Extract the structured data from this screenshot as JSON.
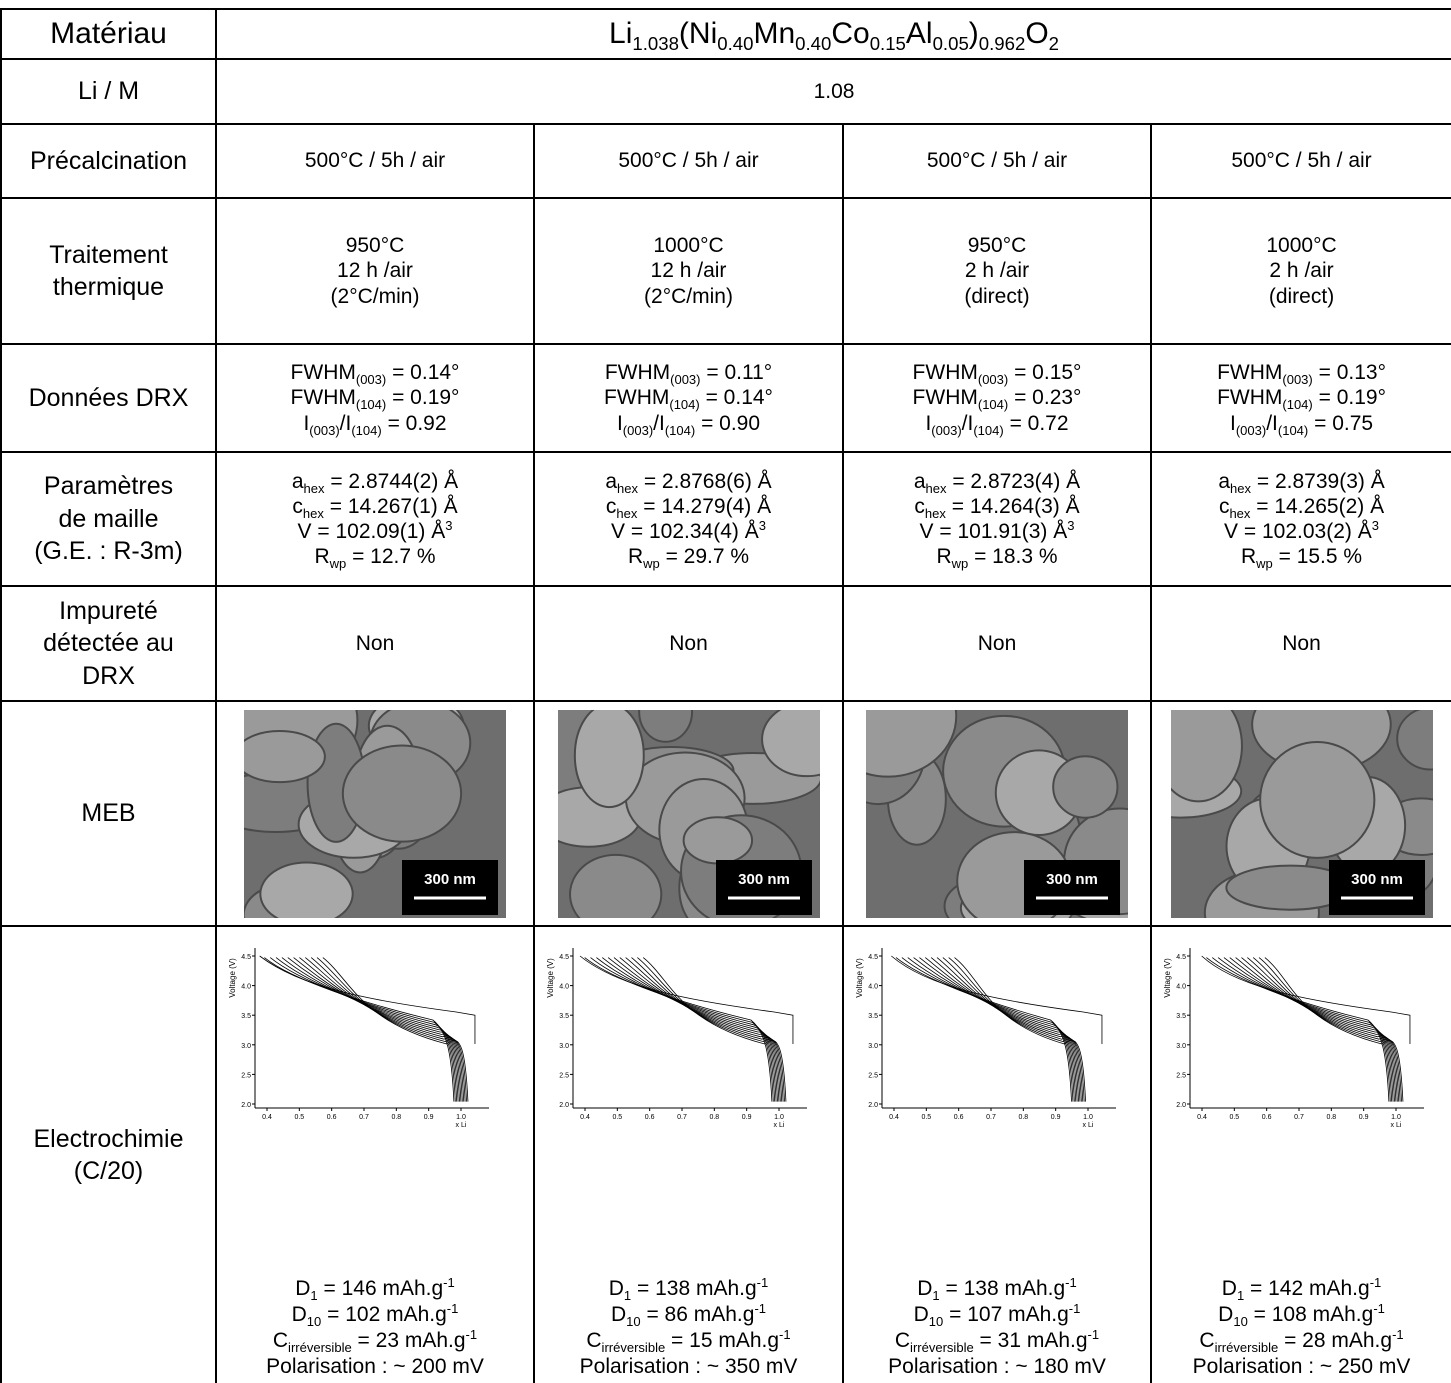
{
  "table": {
    "header": {
      "label": [
        "Matériau"
      ],
      "formula": [
        [
          {
            "t": "Li"
          },
          {
            "sub": "1.038"
          },
          {
            "t": "(Ni"
          },
          {
            "sub": "0.40"
          },
          {
            "t": "Mn"
          },
          {
            "sub": "0.40"
          },
          {
            "t": "Co"
          },
          {
            "sub": "0.15"
          },
          {
            "t": "Al"
          },
          {
            "sub": "0.05"
          },
          {
            "t": ")"
          },
          {
            "sub": "0.962"
          },
          {
            "t": "O"
          },
          {
            "sub": "2"
          }
        ]
      ]
    },
    "rows": [
      {
        "label": [
          "Li / M"
        ],
        "cells": [
          [
            "1.08"
          ]
        ]
      },
      {
        "label": [
          "Précalcination"
        ],
        "cells": [
          [
            "500°C / 5h / air"
          ],
          [
            "500°C / 5h / air"
          ],
          [
            "500°C / 5h / air"
          ],
          [
            "500°C / 5h / air"
          ]
        ]
      },
      {
        "label": [
          "Traitement",
          "thermique"
        ],
        "cells": [
          [
            "950°C",
            "12 h /air",
            "(2°C/min)"
          ],
          [
            "1000°C",
            "12 h /air",
            "(2°C/min)"
          ],
          [
            "950°C",
            "2 h /air",
            "(direct)"
          ],
          [
            "1000°C",
            "2 h /air",
            "(direct)"
          ]
        ]
      },
      {
        "label": [
          "Données DRX"
        ],
        "cells": [
          [
            [
              {
                "t": "FWHM"
              },
              {
                "sub": "(003)"
              },
              {
                "t": " = 0.14°"
              }
            ],
            [
              {
                "t": "FWHM"
              },
              {
                "sub": "(104)"
              },
              {
                "t": " = 0.19°"
              }
            ],
            [
              {
                "t": "I"
              },
              {
                "sub": "(003)"
              },
              {
                "t": "/I"
              },
              {
                "sub": "(104)"
              },
              {
                "t": " = 0.92"
              }
            ]
          ],
          [
            [
              {
                "t": "FWHM"
              },
              {
                "sub": "(003)"
              },
              {
                "t": " = 0.11°"
              }
            ],
            [
              {
                "t": "FWHM"
              },
              {
                "sub": "(104)"
              },
              {
                "t": " = 0.14°"
              }
            ],
            [
              {
                "t": "I"
              },
              {
                "sub": "(003)"
              },
              {
                "t": "/I"
              },
              {
                "sub": "(104)"
              },
              {
                "t": " = 0.90"
              }
            ]
          ],
          [
            [
              {
                "t": "FWHM"
              },
              {
                "sub": "(003)"
              },
              {
                "t": " = 0.15°"
              }
            ],
            [
              {
                "t": "FWHM"
              },
              {
                "sub": "(104)"
              },
              {
                "t": " = 0.23°"
              }
            ],
            [
              {
                "t": "I"
              },
              {
                "sub": "(003)"
              },
              {
                "t": "/I"
              },
              {
                "sub": "(104)"
              },
              {
                "t": " = 0.72"
              }
            ]
          ],
          [
            [
              {
                "t": "FWHM"
              },
              {
                "sub": "(003)"
              },
              {
                "t": " = 0.13°"
              }
            ],
            [
              {
                "t": "FWHM"
              },
              {
                "sub": "(104)"
              },
              {
                "t": " = 0.19°"
              }
            ],
            [
              {
                "t": "I"
              },
              {
                "sub": "(003)"
              },
              {
                "t": "/I"
              },
              {
                "sub": "(104)"
              },
              {
                "t": " = 0.75"
              }
            ]
          ]
        ]
      },
      {
        "label": [
          "Paramètres",
          "de maille",
          "(G.E. : R-3m)"
        ],
        "cells": [
          [
            [
              {
                "t": "a"
              },
              {
                "sub": "hex"
              },
              {
                "t": " = 2.8744(2) Å"
              }
            ],
            [
              {
                "t": "c"
              },
              {
                "sub": "hex"
              },
              {
                "t": " = 14.267(1) Å"
              }
            ],
            [
              {
                "t": "V = 102.09(1) Å"
              },
              {
                "sup": "3"
              }
            ],
            [
              {
                "t": "R"
              },
              {
                "sub": "wp"
              },
              {
                "t": " = 12.7 %"
              }
            ]
          ],
          [
            [
              {
                "t": "a"
              },
              {
                "sub": "hex"
              },
              {
                "t": " = 2.8768(6) Å"
              }
            ],
            [
              {
                "t": "c"
              },
              {
                "sub": "hex"
              },
              {
                "t": " = 14.279(4) Å"
              }
            ],
            [
              {
                "t": "V = 102.34(4) Å"
              },
              {
                "sup": "3"
              }
            ],
            [
              {
                "t": "R"
              },
              {
                "sub": "wp"
              },
              {
                "t": " = 29.7 %"
              }
            ]
          ],
          [
            [
              {
                "t": "a"
              },
              {
                "sub": "hex"
              },
              {
                "t": " = 2.8723(4) Å"
              }
            ],
            [
              {
                "t": "c"
              },
              {
                "sub": "hex"
              },
              {
                "t": " = 14.264(3) Å"
              }
            ],
            [
              {
                "t": "V = 101.91(3) Å"
              },
              {
                "sup": "3"
              }
            ],
            [
              {
                "t": "R"
              },
              {
                "sub": "wp"
              },
              {
                "t": " = 18.3 %"
              }
            ]
          ],
          [
            [
              {
                "t": "a"
              },
              {
                "sub": "hex"
              },
              {
                "t": " = 2.8739(3) Å"
              }
            ],
            [
              {
                "t": "c"
              },
              {
                "sub": "hex"
              },
              {
                "t": " = 14.265(2) Å"
              }
            ],
            [
              {
                "t": "V = 102.03(2) Å"
              },
              {
                "sup": "3"
              }
            ],
            [
              {
                "t": "R"
              },
              {
                "sub": "wp"
              },
              {
                "t": " = 15.5 %"
              }
            ]
          ]
        ]
      },
      {
        "label": [
          "Impureté",
          "détectée au",
          "DRX"
        ],
        "cells": [
          [
            "Non"
          ],
          [
            "Non"
          ],
          [
            "Non"
          ],
          [
            "Non"
          ]
        ]
      }
    ],
    "meb": {
      "label": [
        "MEB"
      ],
      "scale_bars": [
        "300 nm",
        "300 nm",
        "300 nm",
        "300 nm"
      ]
    },
    "electrochimie": {
      "label": [
        "Electrochimie",
        "(C/20)"
      ],
      "axes": {
        "y_label": "Voltage (V)",
        "x_label": "x Li",
        "yticks": [
          "4.5",
          "4.0",
          "3.5",
          "3.0",
          "2.5",
          "2.0"
        ],
        "xticks": [
          "0.4",
          "0.5",
          "0.6",
          "0.7",
          "0.8",
          "0.9",
          "1.0"
        ]
      },
      "cells": [
        [
          [
            {
              "t": "D"
            },
            {
              "sub": "1"
            },
            {
              "t": " = 146 mAh.g"
            },
            {
              "sup": "-1"
            }
          ],
          [
            {
              "t": "D"
            },
            {
              "sub": "10"
            },
            {
              "t": " = 102 mAh.g"
            },
            {
              "sup": "-1"
            }
          ],
          [
            {
              "t": "C"
            },
            {
              "sub": "irréversible"
            },
            {
              "t": " = 23 mAh.g"
            },
            {
              "sup": "-1"
            }
          ],
          "Polarisation : ~ 200 mV"
        ],
        [
          [
            {
              "t": "D"
            },
            {
              "sub": "1"
            },
            {
              "t": " = 138 mAh.g"
            },
            {
              "sup": "-1"
            }
          ],
          [
            {
              "t": "D"
            },
            {
              "sub": "10"
            },
            {
              "t": " = 86 mAh.g"
            },
            {
              "sup": "-1"
            }
          ],
          [
            {
              "t": "C"
            },
            {
              "sub": "irréversible"
            },
            {
              "t": " = 15 mAh.g"
            },
            {
              "sup": "-1"
            }
          ],
          "Polarisation : ~ 350 mV"
        ],
        [
          [
            {
              "t": "D"
            },
            {
              "sub": "1"
            },
            {
              "t": " = 138 mAh.g"
            },
            {
              "sup": "-1"
            }
          ],
          [
            {
              "t": "D"
            },
            {
              "sub": "10"
            },
            {
              "t": " = 107 mAh.g"
            },
            {
              "sup": "-1"
            }
          ],
          [
            {
              "t": "C"
            },
            {
              "sub": "irréversible"
            },
            {
              "t": " = 31 mAh.g"
            },
            {
              "sup": "-1"
            }
          ],
          "Polarisation : ~ 180 mV"
        ],
        [
          [
            {
              "t": "D"
            },
            {
              "sub": "1"
            },
            {
              "t": " = 142 mAh.g"
            },
            {
              "sup": "-1"
            }
          ],
          [
            {
              "t": "D"
            },
            {
              "sub": "10"
            },
            {
              "t": " = 108 mAh.g"
            },
            {
              "sup": "-1"
            }
          ],
          [
            {
              "t": "C"
            },
            {
              "sub": "irréversible"
            },
            {
              "t": " = 28 mAh.g"
            },
            {
              "sup": "-1"
            }
          ],
          "Polarisation : ~ 250 mV"
        ]
      ]
    }
  }
}
